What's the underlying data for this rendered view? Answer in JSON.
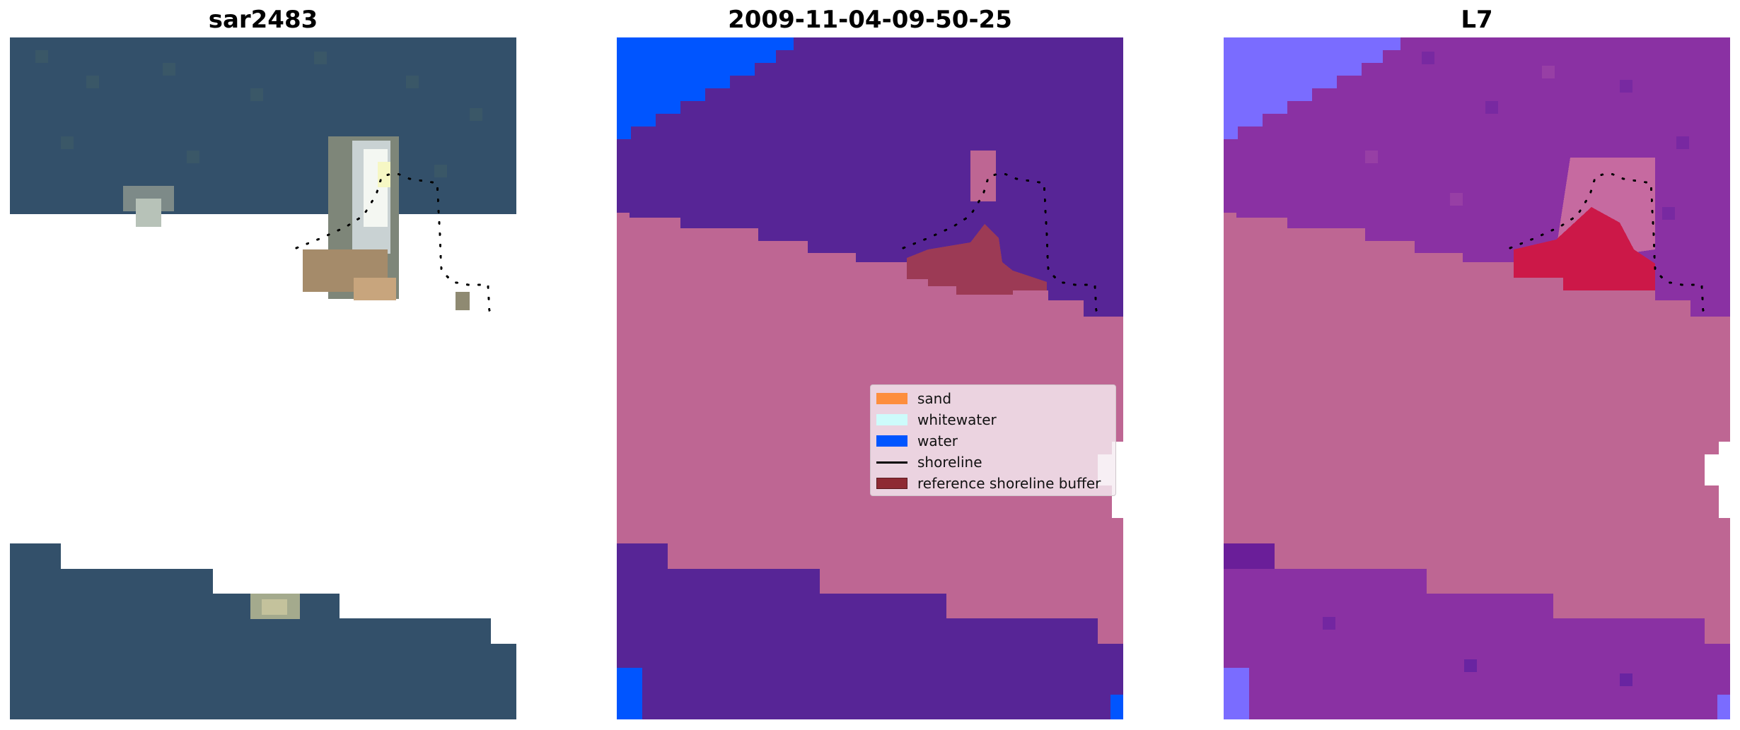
{
  "panels": [
    {
      "title": "sar2483"
    },
    {
      "title": "2009-11-04-09-50-25"
    },
    {
      "title": "L7"
    }
  ],
  "legend": {
    "items": [
      {
        "label": "sand",
        "color": "#fd8e3d",
        "kind": "patch"
      },
      {
        "label": "whitewater",
        "color": "#cdfbfb",
        "kind": "patch"
      },
      {
        "label": "water",
        "color": "#0055ff",
        "kind": "patch"
      },
      {
        "label": "shoreline",
        "color": "#000000",
        "kind": "line"
      },
      {
        "label": "reference shoreline buffer",
        "color": "#8e2a33",
        "kind": "patch"
      }
    ]
  },
  "colors": {
    "land": "#be6693",
    "ocean_class": "#572596",
    "water": "#0055ff",
    "buffer": "#9c3a55",
    "rgb_water": "#34516a",
    "l7_ocean": "#8a31a3",
    "l7_land": "#be6693",
    "l7_water": "#7a6cff",
    "l7_buffer": "#cc1848"
  }
}
